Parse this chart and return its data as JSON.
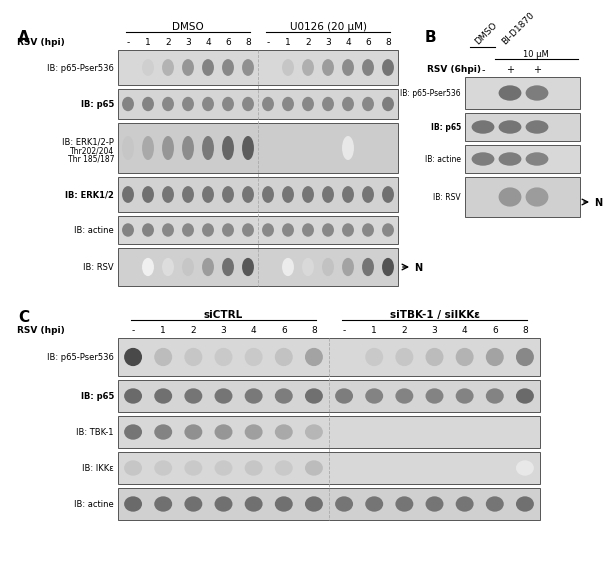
{
  "fig_width": 5.96,
  "fig_height": 5.61,
  "panel_A": {
    "label": "A",
    "dmso_label": "DMSO",
    "u0126_label": "U0126 (20 μM)",
    "rsv_label": "RSV (hpi)",
    "timepoints": [
      "-",
      "1",
      "2",
      "3",
      "4",
      "6",
      "8",
      "-",
      "1",
      "2",
      "3",
      "4",
      "6",
      "8"
    ],
    "blots": [
      {
        "label": "IB: p65-Pser536",
        "bold": false,
        "multiline": false
      },
      {
        "label": "IB: p65",
        "bold": true,
        "multiline": false
      },
      {
        "label": "IB: ERK1/2-P",
        "bold": false,
        "sub1": "Thr202/204",
        "sub2": "Thr 185/187",
        "multiline": true
      },
      {
        "label": "IB: ERK1/2",
        "bold": true,
        "multiline": false
      },
      {
        "label": "IB: actine",
        "bold": false,
        "multiline": false
      },
      {
        "label": "IB: RSV",
        "bold": false,
        "multiline": false
      }
    ]
  },
  "panel_B": {
    "label": "B",
    "dmso_label": "DMSO",
    "bid_label": "BI-D1870",
    "conc_label": "10 μM",
    "rsv_label": "RSV (6hpi)",
    "timepoints": [
      "-",
      "+",
      "+"
    ],
    "blots": [
      {
        "label": "IB: p65-Pser536",
        "bold": false
      },
      {
        "label": "IB: p65",
        "bold": true
      },
      {
        "label": "IB: actine",
        "bold": false
      },
      {
        "label": "IB: RSV",
        "bold": false
      }
    ]
  },
  "panel_C": {
    "label": "C",
    "sictrl_label": "siCTRL",
    "sitkb_label": "siTBK-1 / siIKKε",
    "rsv_label": "RSV (hpi)",
    "timepoints": [
      "-",
      "1",
      "2",
      "3",
      "4",
      "6",
      "8",
      "-",
      "1",
      "2",
      "3",
      "4",
      "6",
      "8"
    ],
    "blots": [
      {
        "label": "IB: p65-Pser536",
        "bold": false
      },
      {
        "label": "IB: p65",
        "bold": true
      },
      {
        "label": "IB: TBK-1",
        "bold": false
      },
      {
        "label": "IB: IKKε",
        "bold": false
      },
      {
        "label": "IB: actine",
        "bold": false
      }
    ]
  }
}
